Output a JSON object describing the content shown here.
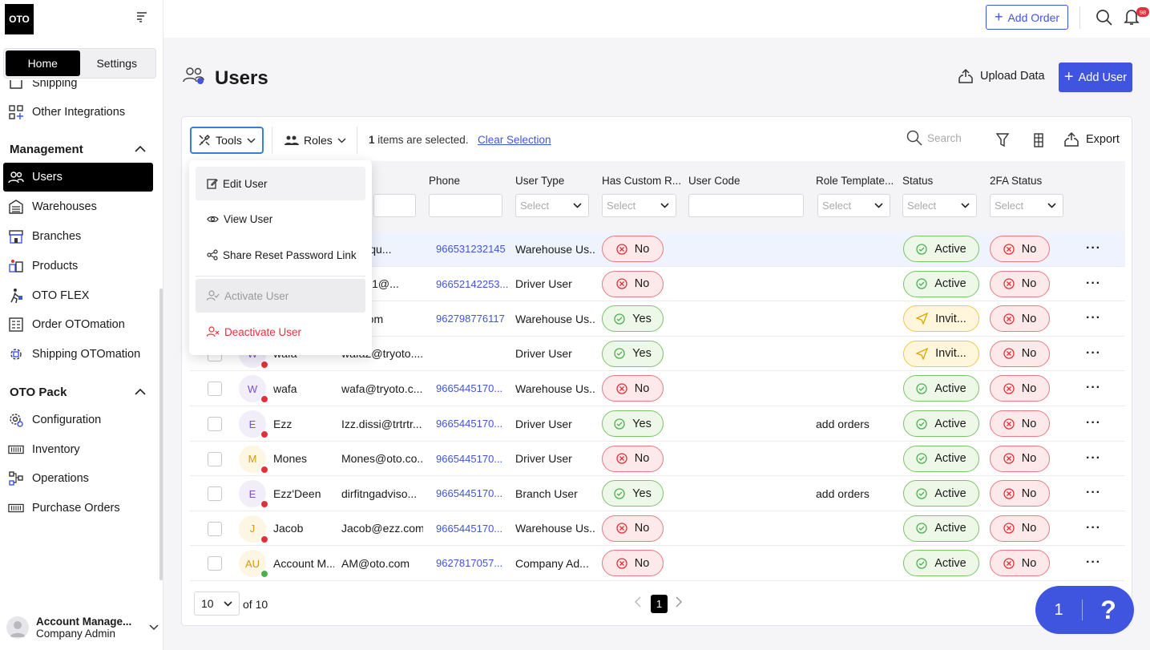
{
  "app": {
    "logo": "OTO"
  },
  "sidebar": {
    "tabs": [
      {
        "label": "Home",
        "active": true
      },
      {
        "label": "Settings",
        "active": false
      }
    ],
    "partial_item": "Shipping",
    "other_integrations": "Other Integrations",
    "management_heading": "Management",
    "management_items": [
      {
        "label": "Users",
        "icon": "users-icon",
        "active": true
      },
      {
        "label": "Warehouses",
        "icon": "warehouse-icon"
      },
      {
        "label": "Branches",
        "icon": "branch-icon"
      },
      {
        "label": "Products",
        "icon": "products-icon"
      },
      {
        "label": "OTO FLEX",
        "icon": "flex-icon"
      },
      {
        "label": "Order OTOmation",
        "icon": "order-automation-icon"
      },
      {
        "label": "Shipping OTOmation",
        "icon": "shipping-automation-icon"
      }
    ],
    "otopack_heading": "OTO Pack",
    "otopack_items": [
      {
        "label": "Configuration",
        "icon": "gear-icon"
      },
      {
        "label": "Inventory",
        "icon": "inventory-icon"
      },
      {
        "label": "Operations",
        "icon": "operations-icon"
      },
      {
        "label": "Purchase Orders",
        "icon": "purchase-orders-icon"
      }
    ],
    "account": {
      "name": "Account Manage...",
      "role": "Company Admin"
    }
  },
  "topbar": {
    "add_order": "Add Order",
    "notifications": "98"
  },
  "page": {
    "title": "Users",
    "upload_data": "Upload Data",
    "add_user": "Add User"
  },
  "toolbar": {
    "tools": "Tools",
    "roles": "Roles",
    "selected_count": "1",
    "selected_suffix": " items are selected.",
    "clear_selection": "Clear Selection",
    "search_placeholder": "Search",
    "export": "Export"
  },
  "table": {
    "columns": {
      "phone": "Phone",
      "user_type": "User Type",
      "has_custom": "Has Custom R...",
      "user_code": "User Code",
      "role_template": "Role Template...",
      "status": "Status",
      "twofa": "2FA Status"
    },
    "select_placeholder": "Select",
    "rows": [
      {
        "initial": "",
        "name": "",
        "email": "@niltiqu...",
        "phone": "966531232145",
        "type": "Warehouse Us...",
        "custom": "No",
        "role": "",
        "status": "Active",
        "twofa": "No",
        "dot": "#e0313a"
      },
      {
        "initial": "",
        "name": "",
        "email": "sheed1@...",
        "phone": "96652142253...",
        "type": "Driver User",
        "custom": "No",
        "role": "",
        "status": "Active",
        "twofa": "No",
        "dot": "#e0313a"
      },
      {
        "initial": "",
        "name": "",
        "email": "nail.com",
        "phone": "962798776117",
        "type": "Warehouse Us...",
        "custom": "Yes",
        "role": "",
        "status": "Invit...",
        "twofa": "No",
        "dot": "#e0313a"
      },
      {
        "initial": "W",
        "name": "wafa",
        "email": "wafa2@tryoto....",
        "phone": "",
        "type": "Driver User",
        "custom": "Yes",
        "role": "",
        "status": "Invit...",
        "twofa": "No",
        "dot": "#e0313a"
      },
      {
        "initial": "W",
        "name": "wafa",
        "email": "wafa@tryoto.c...",
        "phone": "9665445170...",
        "type": "Warehouse Us...",
        "custom": "No",
        "role": "",
        "status": "Active",
        "twofa": "No",
        "dot": "#e0313a"
      },
      {
        "initial": "E",
        "name": "Ezz",
        "email": "Izz.dissi@trtrtr...",
        "phone": "9665445170...",
        "type": "Driver User",
        "custom": "Yes",
        "role": "add orders",
        "status": "Active",
        "twofa": "No",
        "dot": "#e0313a"
      },
      {
        "initial": "M",
        "name": "Mones",
        "email": "Mones@oto.co...",
        "phone": "9665445170...",
        "type": "Driver User",
        "custom": "No",
        "role": "",
        "status": "Active",
        "twofa": "No",
        "dot": "#e0313a"
      },
      {
        "initial": "E",
        "name": "Ezz'Deen",
        "email": "dirfitngadviso...",
        "phone": "9665445170...",
        "type": "Branch User",
        "custom": "Yes",
        "role": "add orders",
        "status": "Active",
        "twofa": "No",
        "dot": "#e0313a"
      },
      {
        "initial": "J",
        "name": "Jacob",
        "email": "Jacob@ezz.com",
        "phone": "9665445170...",
        "type": "Warehouse Us...",
        "custom": "No",
        "role": "",
        "status": "Active",
        "twofa": "No",
        "dot": "#e0313a"
      },
      {
        "initial": "AU",
        "name": "Account M...",
        "email": "AM@oto.com",
        "phone": "9627817057...",
        "type": "Company Ad...",
        "custom": "No",
        "role": "",
        "status": "Active",
        "twofa": "No",
        "dot": "#4caf50"
      }
    ]
  },
  "pagination": {
    "page_size": "10",
    "of_text": "of 10",
    "current_page": "1"
  },
  "tools_menu": {
    "items": [
      {
        "label": "Edit User",
        "icon": "edit-icon",
        "state": "hover"
      },
      {
        "label": "View User",
        "icon": "eye-icon",
        "state": "normal"
      },
      {
        "label": "Share Reset Password Link",
        "icon": "share-icon",
        "state": "normal"
      },
      {
        "label": "Activate User",
        "icon": "user-check-icon",
        "state": "disabled"
      },
      {
        "label": "Deactivate User",
        "icon": "user-x-icon",
        "state": "danger"
      }
    ]
  },
  "help": {
    "count": "1",
    "symbol": "?"
  },
  "colors": {
    "accent": "#3f55e0",
    "danger": "#e0313a",
    "success": "#4caf50"
  }
}
